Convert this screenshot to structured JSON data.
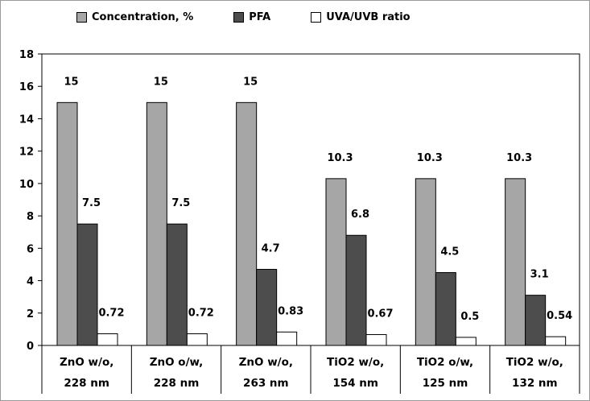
{
  "chart_data": {
    "type": "bar",
    "categories": [
      [
        "ZnO w/o,",
        "228 nm"
      ],
      [
        "ZnO o/w,",
        "228 nm"
      ],
      [
        "ZnO w/o,",
        "263 nm"
      ],
      [
        "TiO2 w/o,",
        "154 nm"
      ],
      [
        "TiO2 o/w,",
        "125 nm"
      ],
      [
        "TiO2 w/o,",
        "132 nm"
      ]
    ],
    "series": [
      {
        "name": "Concentration, %",
        "color": "#a6a6a6",
        "values": [
          15,
          15,
          15,
          10.3,
          10.3,
          10.3
        ],
        "labels": [
          "15",
          "15",
          "15",
          "10.3",
          "10.3",
          "10.3"
        ]
      },
      {
        "name": "PFA",
        "color": "#4d4d4d",
        "values": [
          7.5,
          7.5,
          4.7,
          6.8,
          4.5,
          3.1
        ],
        "labels": [
          "7.5",
          "7.5",
          "4.7",
          "6.8",
          "4.5",
          "3.1"
        ]
      },
      {
        "name": "UVA/UVB ratio",
        "color": "#ffffff",
        "values": [
          0.72,
          0.72,
          0.83,
          0.67,
          0.5,
          0.54
        ],
        "labels": [
          "0.72",
          "0.72",
          "0.83",
          "0.67",
          "0.5",
          "0.54"
        ]
      }
    ],
    "ylim": [
      0,
      18
    ],
    "yticks": [
      0,
      2,
      4,
      6,
      8,
      10,
      12,
      14,
      16,
      18
    ],
    "grid": false,
    "legend_position": "top"
  }
}
